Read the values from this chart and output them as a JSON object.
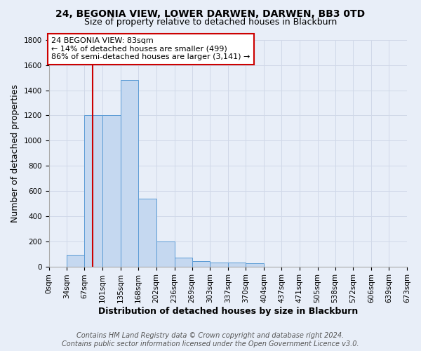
{
  "title": "24, BEGONIA VIEW, LOWER DARWEN, DARWEN, BB3 0TD",
  "subtitle": "Size of property relative to detached houses in Blackburn",
  "xlabel": "Distribution of detached houses by size in Blackburn",
  "ylabel": "Number of detached properties",
  "bin_edges": [
    0,
    34,
    67,
    101,
    135,
    168,
    202,
    236,
    269,
    303,
    337,
    370,
    404,
    437,
    471,
    505,
    538,
    572,
    606,
    639,
    673
  ],
  "bar_heights": [
    0,
    90,
    1200,
    1200,
    1480,
    540,
    200,
    70,
    45,
    30,
    30,
    25,
    0,
    0,
    0,
    0,
    0,
    0,
    0,
    0
  ],
  "bar_color": "#c5d8f0",
  "bar_edgecolor": "#5b9bd5",
  "grid_color": "#d0d8e8",
  "bg_color": "#e8eef8",
  "property_size": 83,
  "red_line_color": "#cc0000",
  "annotation_line1": "24 BEGONIA VIEW: 83sqm",
  "annotation_line2": "← 14% of detached houses are smaller (499)",
  "annotation_line3": "86% of semi-detached houses are larger (3,141) →",
  "annotation_box_color": "#ffffff",
  "annotation_box_edgecolor": "#cc0000",
  "ylim": [
    0,
    1800
  ],
  "yticks": [
    0,
    200,
    400,
    600,
    800,
    1000,
    1200,
    1400,
    1600,
    1800
  ],
  "footer_line1": "Contains HM Land Registry data © Crown copyright and database right 2024.",
  "footer_line2": "Contains public sector information licensed under the Open Government Licence v3.0.",
  "title_fontsize": 10,
  "subtitle_fontsize": 9,
  "tick_label_fontsize": 7.5,
  "axis_label_fontsize": 9,
  "footer_fontsize": 7,
  "annotation_fontsize": 8
}
